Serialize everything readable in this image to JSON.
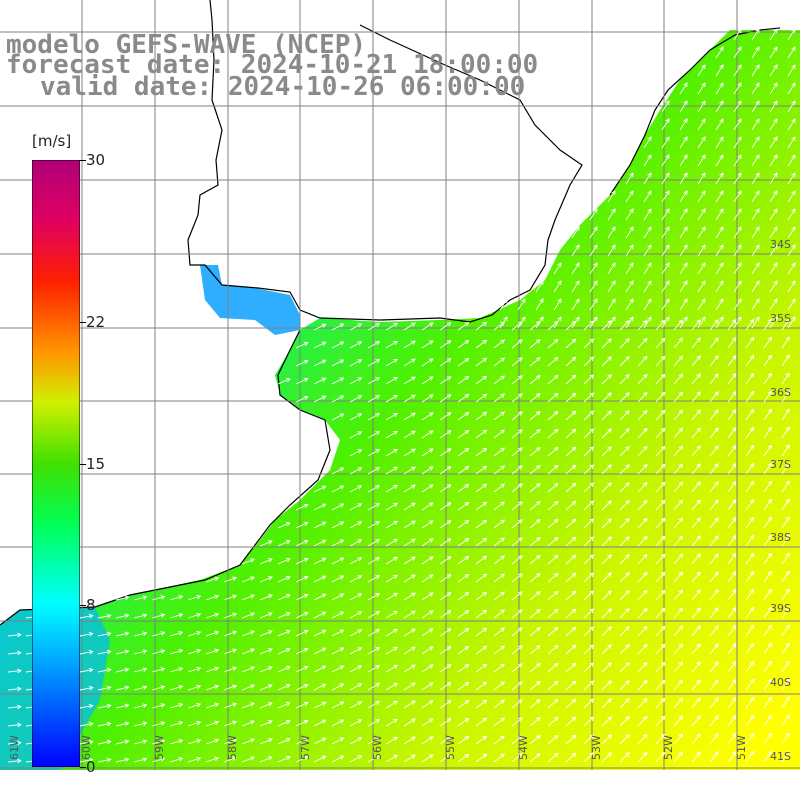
{
  "title": {
    "line1": "modelo GEFS-WAVE (NCEP)",
    "line2": "forecast date: 2024-10-21 18:00:00",
    "line3": "valid date: 2024-10-26 06:00:00"
  },
  "colorbar": {
    "unit": "[m/s]",
    "ticks": [
      "30",
      "22",
      "15",
      "8",
      "0"
    ],
    "tick_values": [
      30,
      22,
      15,
      8,
      0
    ],
    "range": [
      0,
      30
    ],
    "colors": [
      "#0000ff",
      "#00b4ff",
      "#00ffff",
      "#00ff66",
      "#00e000",
      "#80f000",
      "#ffff00",
      "#ff9900",
      "#ff4400",
      "#ff0000",
      "#e0007a",
      "#b0007a"
    ]
  },
  "map": {
    "lat_labels": [
      "34S",
      "35S",
      "36S",
      "37S",
      "38S",
      "39S",
      "40S",
      "41S"
    ],
    "lon_labels": [
      "61W",
      "60W",
      "59W",
      "58W",
      "57W",
      "56W",
      "55W",
      "54W",
      "53W",
      "52W",
      "51W"
    ],
    "land_color": "#ffffff",
    "coast_color": "#000000",
    "grid_color": "#808080",
    "arrow_color": "#ffffff",
    "wind_direction": "southwesterly"
  }
}
